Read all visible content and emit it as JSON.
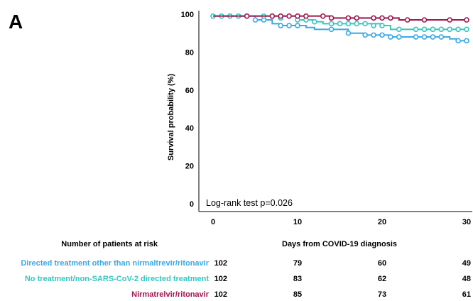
{
  "panel_label": "A",
  "colors": {
    "directed_other": "#3aa8e6",
    "no_treatment": "#34c6c0",
    "nirmatrelvir": "#a0154d",
    "axis": "#000000",
    "text": "#000000"
  },
  "chart_data": {
    "type": "line",
    "title": "",
    "xlabel": "Days from COVID-19 diagnosis",
    "ylabel": "Survival probability (%)",
    "xlim": [
      0,
      30
    ],
    "ylim": [
      0,
      100
    ],
    "x_ticks": [
      0,
      10,
      20,
      30
    ],
    "y_ticks": [
      0,
      20,
      40,
      60,
      80,
      100
    ],
    "grid": false,
    "annotation": "Log-rank test p=0.026",
    "series": [
      {
        "name": "Directed treatment other than nirmaltrevir/ritonavir",
        "color_key": "directed_other",
        "steps": [
          [
            0,
            99
          ],
          [
            5,
            97
          ],
          [
            6,
            97
          ],
          [
            7,
            95
          ],
          [
            8,
            94
          ],
          [
            10,
            94
          ],
          [
            11,
            93
          ],
          [
            12,
            92
          ],
          [
            14,
            92
          ],
          [
            16,
            90
          ],
          [
            18,
            89
          ],
          [
            20,
            89
          ],
          [
            21,
            88
          ],
          [
            26,
            88
          ],
          [
            28,
            87
          ],
          [
            29,
            86
          ],
          [
            30,
            86
          ]
        ],
        "censor": [
          [
            0,
            99
          ],
          [
            1,
            99
          ],
          [
            2,
            99
          ],
          [
            3,
            99
          ],
          [
            5,
            97
          ],
          [
            6,
            97
          ],
          [
            8,
            94
          ],
          [
            9,
            94
          ],
          [
            10,
            94
          ],
          [
            14,
            92
          ],
          [
            16,
            90
          ],
          [
            18,
            89
          ],
          [
            19,
            89
          ],
          [
            20,
            89
          ],
          [
            21,
            88
          ],
          [
            22,
            88
          ],
          [
            24,
            88
          ],
          [
            25,
            88
          ],
          [
            26,
            88
          ],
          [
            27,
            88
          ],
          [
            29,
            86
          ],
          [
            30,
            86
          ]
        ]
      },
      {
        "name": "No treatment/non-SARS-CoV-2 directed treatment",
        "color_key": "no_treatment",
        "steps": [
          [
            0,
            99
          ],
          [
            10,
            97
          ],
          [
            12,
            96
          ],
          [
            13,
            95
          ],
          [
            18,
            95
          ],
          [
            20,
            94
          ],
          [
            21,
            92
          ],
          [
            27,
            92
          ],
          [
            28,
            92
          ],
          [
            30,
            92
          ]
        ],
        "censor": [
          [
            0,
            99
          ],
          [
            1,
            99
          ],
          [
            2,
            99
          ],
          [
            3,
            99
          ],
          [
            6,
            99
          ],
          [
            7,
            99
          ],
          [
            8,
            98
          ],
          [
            10,
            97
          ],
          [
            11,
            97
          ],
          [
            12,
            96
          ],
          [
            14,
            95
          ],
          [
            15,
            95
          ],
          [
            16,
            95
          ],
          [
            17,
            95
          ],
          [
            18,
            95
          ],
          [
            19,
            94
          ],
          [
            20,
            94
          ],
          [
            22,
            92
          ],
          [
            24,
            92
          ],
          [
            25,
            92
          ],
          [
            26,
            92
          ],
          [
            27,
            92
          ],
          [
            28,
            92
          ],
          [
            29,
            92
          ],
          [
            30,
            92
          ]
        ]
      },
      {
        "name": "Nirmatrelvir/ritonavir",
        "color_key": "nirmatrelvir",
        "steps": [
          [
            0,
            99
          ],
          [
            14,
            98
          ],
          [
            20,
            98
          ],
          [
            22,
            97
          ],
          [
            30,
            97
          ]
        ],
        "censor": [
          [
            4,
            99
          ],
          [
            7,
            99
          ],
          [
            8,
            99
          ],
          [
            9,
            99
          ],
          [
            10,
            99
          ],
          [
            11,
            99
          ],
          [
            13,
            99
          ],
          [
            14,
            98
          ],
          [
            16,
            98
          ],
          [
            17,
            98
          ],
          [
            19,
            98
          ],
          [
            20,
            98
          ],
          [
            21,
            98
          ],
          [
            23,
            97
          ],
          [
            25,
            97
          ],
          [
            28,
            97
          ],
          [
            30,
            97
          ]
        ]
      }
    ],
    "risk_table": {
      "title": "Number of patients at risk",
      "time_points": [
        0,
        10,
        20,
        30
      ],
      "rows": [
        {
          "name": "Directed treatment other than nirmaltrevir/ritonavir",
          "color_key": "directed_other",
          "values": [
            102,
            79,
            60,
            49
          ]
        },
        {
          "name": "No treatment/non-SARS-CoV-2 directed treatment",
          "color_key": "no_treatment",
          "values": [
            102,
            83,
            62,
            48
          ]
        },
        {
          "name": "Nirmatrelvir/ritonavir",
          "color_key": "nirmatrelvir",
          "values": [
            102,
            85,
            73,
            61
          ]
        }
      ]
    }
  }
}
